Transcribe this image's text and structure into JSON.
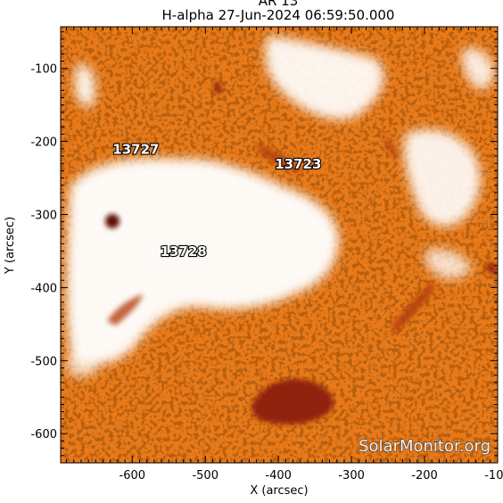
{
  "title": "H-alpha 27-Jun-2024 06:59:50.000",
  "header_partial": "AR 13",
  "map": {
    "xlabel": "X (arcsec)",
    "ylabel": "Y (arcsec)",
    "xlim": [
      -698,
      -100
    ],
    "ylim": [
      -640,
      -43
    ],
    "x_ticks": [
      -600,
      -500,
      -400,
      -300,
      -200,
      -100
    ],
    "y_ticks": [
      -100,
      -200,
      -300,
      -400,
      -500,
      -600
    ]
  },
  "regions": [
    {
      "label": "13727",
      "x": -595,
      "y": -217
    },
    {
      "label": "13723",
      "x": -373,
      "y": -237
    },
    {
      "label": "13728",
      "x": -530,
      "y": -357
    }
  ],
  "watermark": "SolarMonitor.org",
  "colors": {
    "background": "#e87a1a",
    "bright": "#ffffff",
    "dark": "#8b1e0a",
    "speckle": "#2a0a00"
  }
}
